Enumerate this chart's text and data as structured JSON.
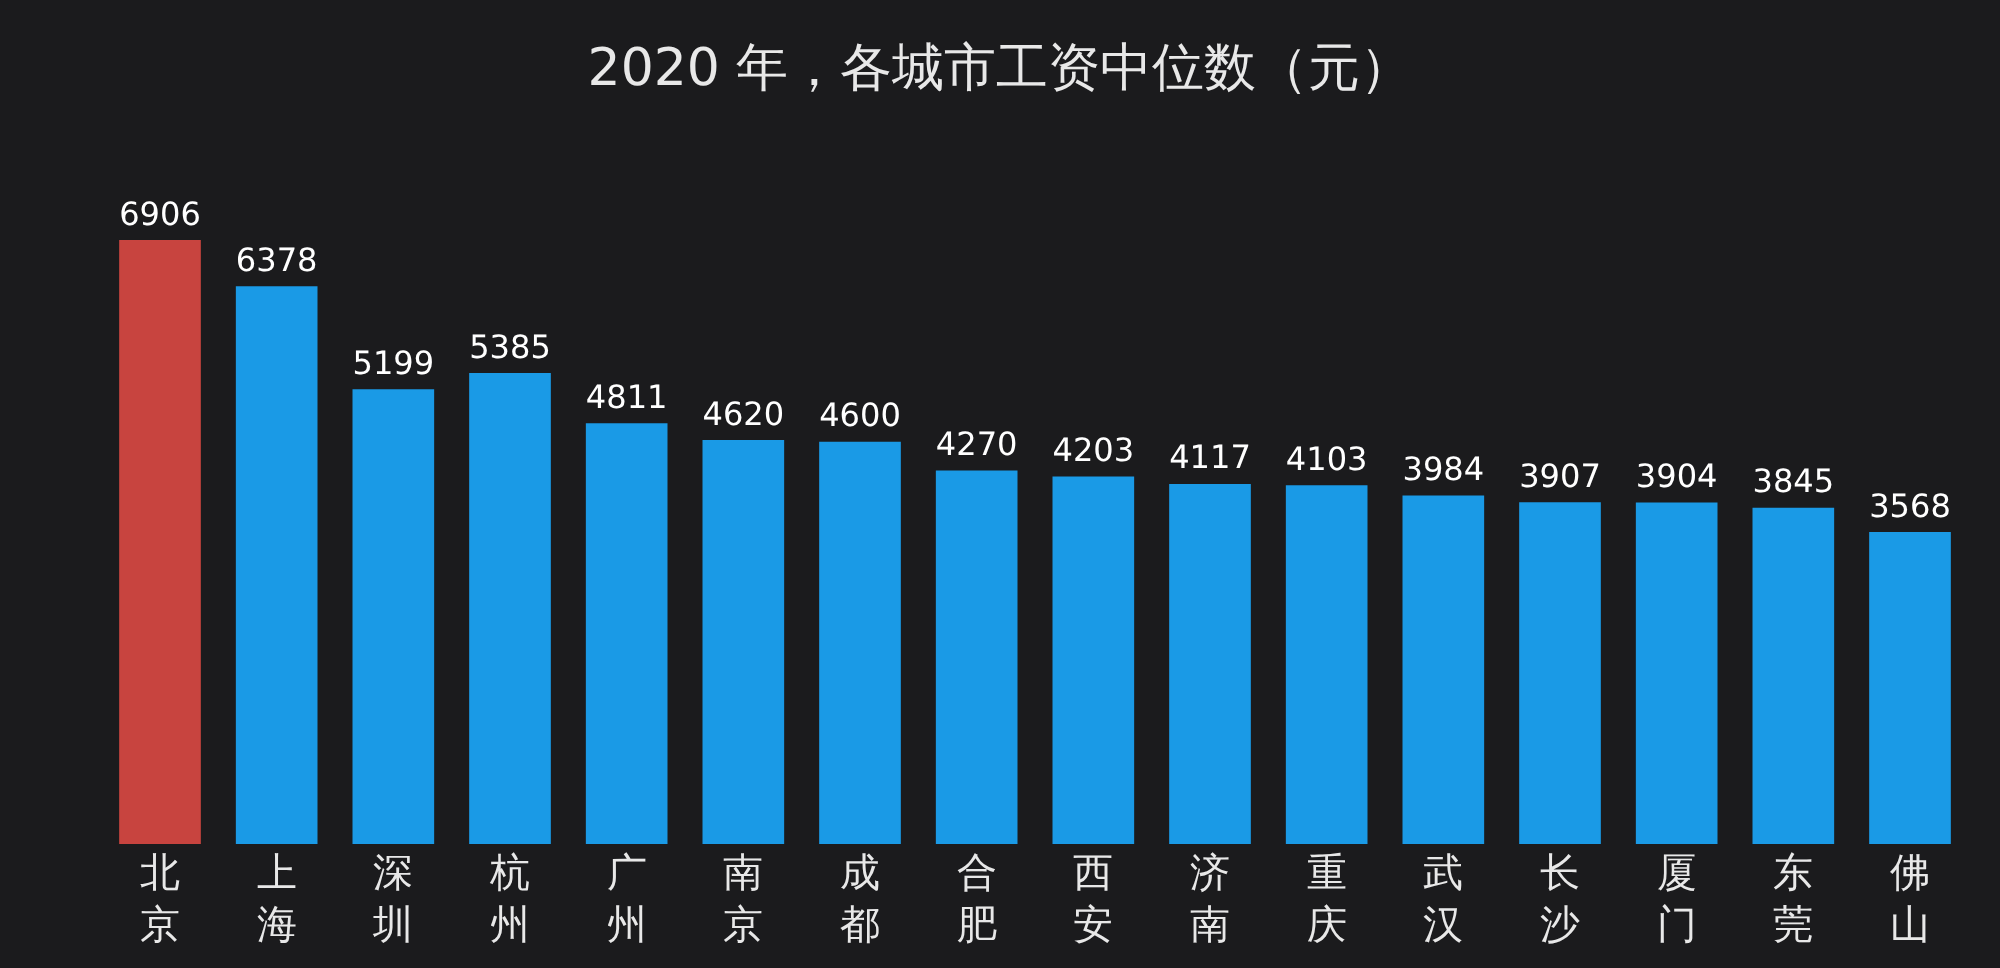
{
  "chart_data": {
    "type": "bar",
    "title": "2020 年，各城市工资中位数（元）",
    "categories": [
      "北京",
      "上海",
      "深圳",
      "杭州",
      "广州",
      "南京",
      "成都",
      "合肥",
      "西安",
      "济南",
      "重庆",
      "武汉",
      "长沙",
      "厦门",
      "东莞",
      "佛山"
    ],
    "values": [
      6906,
      6378,
      5199,
      5385,
      4811,
      4620,
      4600,
      4270,
      4203,
      4117,
      4103,
      3984,
      3907,
      3904,
      3845,
      3568
    ],
    "colors": [
      "#c8443f",
      "#1a9ae6",
      "#1a9ae6",
      "#1a9ae6",
      "#1a9ae6",
      "#1a9ae6",
      "#1a9ae6",
      "#1a9ae6",
      "#1a9ae6",
      "#1a9ae6",
      "#1a9ae6",
      "#1a9ae6",
      "#1a9ae6",
      "#1a9ae6",
      "#1a9ae6",
      "#1a9ae6"
    ],
    "data_labels": true,
    "grid": false,
    "legend": false
  }
}
